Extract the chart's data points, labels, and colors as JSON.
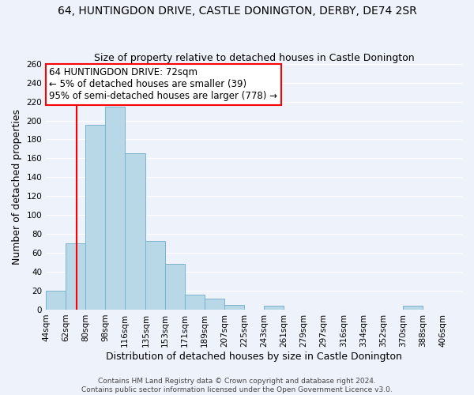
{
  "title": "64, HUNTINGDON DRIVE, CASTLE DONINGTON, DERBY, DE74 2SR",
  "subtitle": "Size of property relative to detached houses in Castle Donington",
  "xlabel": "Distribution of detached houses by size in Castle Donington",
  "ylabel": "Number of detached properties",
  "footer_lines": [
    "Contains HM Land Registry data © Crown copyright and database right 2024.",
    "Contains public sector information licensed under the Open Government Licence v3.0."
  ],
  "bar_left_edges": [
    44,
    62,
    80,
    98,
    116,
    135,
    153,
    171,
    189,
    207,
    225,
    243,
    261,
    279,
    297,
    316,
    334,
    352,
    370,
    388
  ],
  "bar_heights": [
    20,
    70,
    195,
    215,
    165,
    73,
    48,
    16,
    12,
    5,
    0,
    4,
    0,
    0,
    0,
    0,
    0,
    0,
    4,
    0
  ],
  "bar_widths": [
    18,
    18,
    18,
    18,
    19,
    18,
    18,
    18,
    18,
    18,
    18,
    18,
    18,
    18,
    19,
    18,
    18,
    18,
    18,
    18
  ],
  "xtick_labels": [
    "44sqm",
    "62sqm",
    "80sqm",
    "98sqm",
    "116sqm",
    "135sqm",
    "153sqm",
    "171sqm",
    "189sqm",
    "207sqm",
    "225sqm",
    "243sqm",
    "261sqm",
    "279sqm",
    "297sqm",
    "316sqm",
    "334sqm",
    "352sqm",
    "370sqm",
    "388sqm",
    "406sqm"
  ],
  "bar_color": "#b8d8e8",
  "bar_edge_color": "#7ab4cc",
  "vline_x": 72,
  "annotation_line1": "64 HUNTINGDON DRIVE: 72sqm",
  "annotation_line2": "← 5% of detached houses are smaller (39)",
  "annotation_line3": "95% of semi-detached houses are larger (778) →",
  "ylim": [
    0,
    260
  ],
  "yticks": [
    0,
    20,
    40,
    60,
    80,
    100,
    120,
    140,
    160,
    180,
    200,
    220,
    240,
    260
  ],
  "background_color": "#eef2fb",
  "grid_color": "#ffffff",
  "title_fontsize": 10,
  "subtitle_fontsize": 9,
  "axis_label_fontsize": 9,
  "tick_fontsize": 7.5,
  "annotation_fontsize": 8.5
}
